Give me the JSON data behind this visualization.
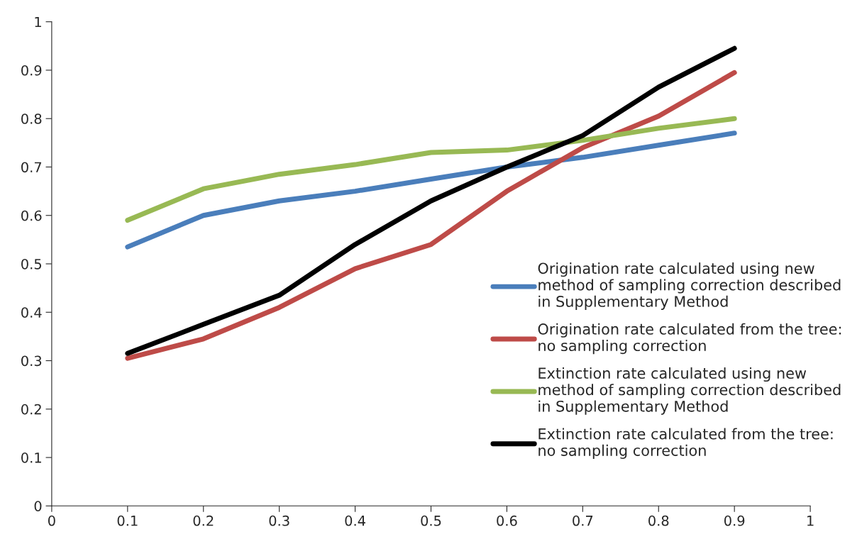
{
  "chart_data": {
    "type": "line",
    "x": [
      0.1,
      0.2,
      0.3,
      0.4,
      0.5,
      0.6,
      0.7,
      0.8,
      0.9
    ],
    "series": [
      {
        "name": "Origination rate calculated using new\nmethod of sampling correction described\nin Supplementary Method",
        "color": "#4a7ebb",
        "values": [
          0.535,
          0.6,
          0.63,
          0.65,
          0.675,
          0.7,
          0.72,
          0.745,
          0.77
        ]
      },
      {
        "name": "Origination rate calculated from the tree:\nno sampling correction",
        "color": "#be4b48",
        "values": [
          0.305,
          0.345,
          0.41,
          0.49,
          0.54,
          0.65,
          0.74,
          0.805,
          0.895
        ]
      },
      {
        "name": "Extinction rate calculated using new\nmethod of sampling correction described\nin Supplementary Method",
        "color": "#98b954",
        "values": [
          0.59,
          0.655,
          0.685,
          0.705,
          0.73,
          0.735,
          0.755,
          0.78,
          0.8
        ]
      },
      {
        "name": "Extinction rate calculated from the tree:\nno sampling correction",
        "color": "#000000",
        "values": [
          0.315,
          0.375,
          0.435,
          0.54,
          0.63,
          0.7,
          0.765,
          0.865,
          0.945
        ]
      }
    ],
    "xlim": [
      0,
      1
    ],
    "xticks": [
      0,
      0.1,
      0.2,
      0.3,
      0.4,
      0.5,
      0.6,
      0.7,
      0.8,
      0.9,
      1
    ],
    "ylim": [
      0,
      1
    ],
    "yticks": [
      0,
      0.1,
      0.2,
      0.3,
      0.4,
      0.5,
      0.6,
      0.7,
      0.8,
      0.9,
      1
    ],
    "grid": false,
    "legend": "right",
    "marker": "none",
    "line_style": "solid"
  }
}
